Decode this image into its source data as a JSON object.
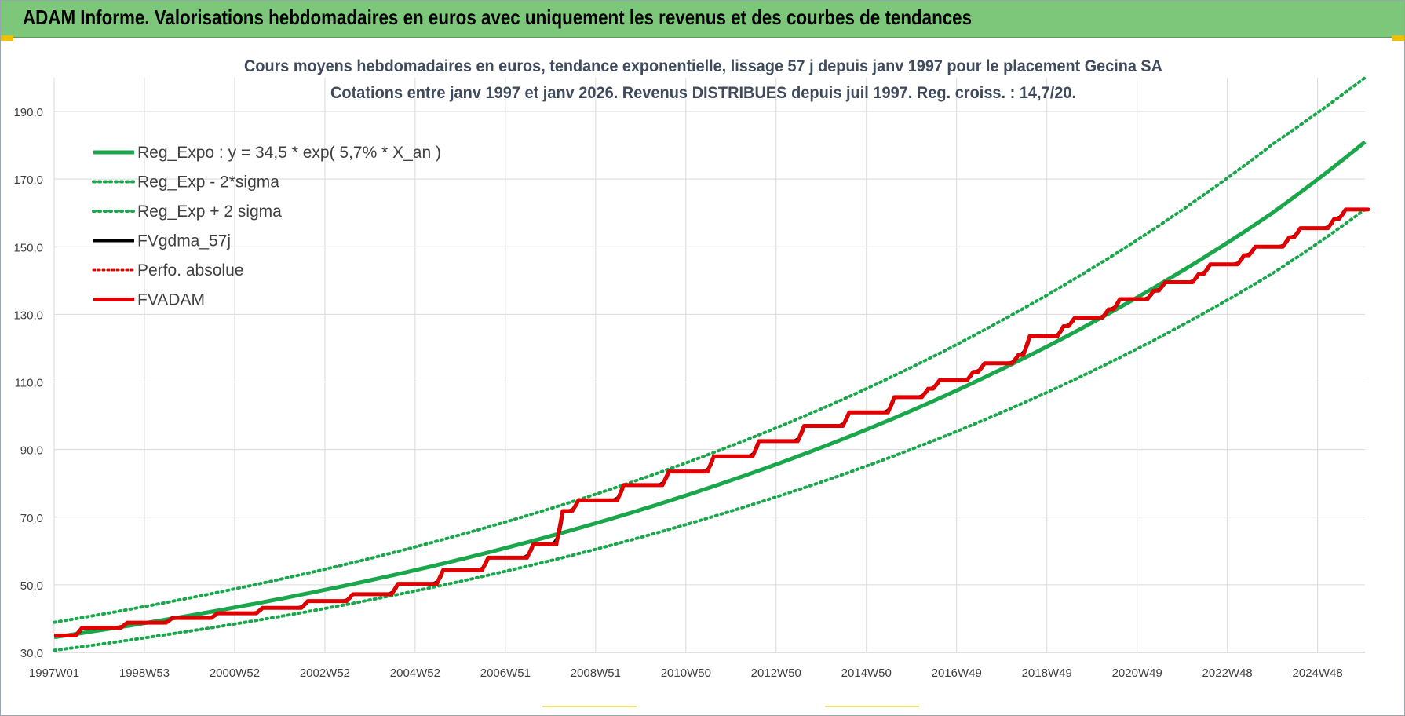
{
  "header": {
    "title": "ADAM Informe. Valorisations hebdomadaires en euros avec uniquement les revenus et des courbes de tendances"
  },
  "colors": {
    "header_bg": "#7dc77a",
    "trend": "#1aa64b",
    "fvgdma": "#000000",
    "perfo": "#e00000",
    "fvadam": "#e00000",
    "grid": "#d9d9d9"
  },
  "chart_data": {
    "type": "line",
    "title_line1": "Cours moyens hebdomadaires en euros, tendance exponentielle, lissage 57 j depuis janv 1997 pour le placement Gecina SA",
    "title_line2": "Cotations entre janv 1997 et janv 2026. Revenus DISTRIBUES depuis juil 1997. Reg. croiss. : 14,7/20.",
    "xlabel": "",
    "ylabel": "",
    "x_range_years": [
      1997.0,
      2026.05
    ],
    "ylim": [
      30,
      200
    ],
    "y_ticks": [
      "30,0",
      "50,0",
      "70,0",
      "90,0",
      "110,0",
      "130,0",
      "150,0",
      "170,0",
      "190,0"
    ],
    "y_tick_values": [
      30,
      50,
      70,
      90,
      110,
      130,
      150,
      170,
      190
    ],
    "x_tick_labels": [
      "1997W01",
      "1998W53",
      "2000W52",
      "2002W52",
      "2004W52",
      "2006W51",
      "2008W51",
      "2010W50",
      "2012W50",
      "2014W50",
      "2016W49",
      "2018W49",
      "2020W49",
      "2022W48",
      "2024W48"
    ],
    "x_tick_years": [
      1997.0,
      1999.0,
      2001.0,
      2003.0,
      2005.0,
      2007.0,
      2009.0,
      2011.0,
      2013.0,
      2015.0,
      2017.0,
      2019.0,
      2021.0,
      2023.0,
      2025.0
    ],
    "grid": true,
    "legend_position": "top-left",
    "legend": [
      {
        "label": "Reg_Expo : y = 34,5 * exp( 5,7% *  X_an )",
        "style": "solid-green"
      },
      {
        "label": "Reg_Exp - 2*sigma",
        "style": "dotted-green"
      },
      {
        "label": "Reg_Exp + 2 sigma",
        "style": "dotted-green"
      },
      {
        "label": "FVgdma_57j",
        "style": "solid-black"
      },
      {
        "label": "Perfo. absolue",
        "style": "dotted-red"
      },
      {
        "label": "FVADAM",
        "style": "solid-red"
      }
    ],
    "series": [
      {
        "name": "Reg_Expo : y = 34,5 * exp( 5,7% *  X_an )",
        "x": [
          1997.0,
          2000.0,
          2003.0,
          2006.0,
          2009.0,
          2012.0,
          2015.0,
          2018.0,
          2021.0,
          2024.0,
          2026.05
        ],
        "values": [
          34.5,
          40.9,
          48.5,
          57.5,
          68.2,
          80.9,
          95.9,
          113.8,
          135.0,
          160.0,
          181.0
        ]
      },
      {
        "name": "Reg_Exp - 2*sigma",
        "x": [
          1997.0,
          2000.0,
          2003.0,
          2006.0,
          2009.0,
          2012.0,
          2015.0,
          2018.0,
          2021.0,
          2024.0,
          2026.05
        ],
        "values": [
          30.6,
          36.3,
          43.0,
          51.0,
          60.5,
          71.8,
          85.1,
          101.0,
          119.8,
          142.1,
          161.0
        ]
      },
      {
        "name": "Reg_Exp + 2 sigma",
        "x": [
          1997.0,
          2000.0,
          2003.0,
          2006.0,
          2009.0,
          2012.0,
          2015.0,
          2018.0,
          2021.0,
          2024.0,
          2026.05
        ],
        "values": [
          38.9,
          46.1,
          54.6,
          64.8,
          76.8,
          91.1,
          108.0,
          128.2,
          152.0,
          180.3,
          200.0
        ]
      },
      {
        "name": "FVADAM",
        "x": [
          1997.0,
          1997.55,
          1998.55,
          1999.55,
          2000.55,
          2001.55,
          2002.55,
          2003.55,
          2004.55,
          2005.55,
          2006.55,
          2007.55,
          2008.2,
          2008.55,
          2009.55,
          2010.55,
          2011.55,
          2012.55,
          2013.55,
          2014.55,
          2015.55,
          2016.3,
          2016.55,
          2017.3,
          2017.55,
          2018.3,
          2018.55,
          2019.3,
          2019.55,
          2020.3,
          2020.55,
          2021.3,
          2021.55,
          2022.3,
          2022.55,
          2023.3,
          2023.55,
          2024.3,
          2024.55,
          2025.3,
          2025.55,
          2026.05
        ],
        "values": [
          35.0,
          37.3,
          38.8,
          40.2,
          41.6,
          43.2,
          45.2,
          47.2,
          50.3,
          54.3,
          58.0,
          62.0,
          71.8,
          75.0,
          79.5,
          83.5,
          88.0,
          92.5,
          97.0,
          101.0,
          105.5,
          108.0,
          110.5,
          113.0,
          115.5,
          118.0,
          123.5,
          126.5,
          129.0,
          131.5,
          134.5,
          137.0,
          139.5,
          142.0,
          144.8,
          147.5,
          150.0,
          152.8,
          155.5,
          158.3,
          161.0,
          161.0
        ]
      },
      {
        "name": "FVgdma_57j"
      },
      {
        "name": "Perfo. absolue"
      }
    ]
  }
}
